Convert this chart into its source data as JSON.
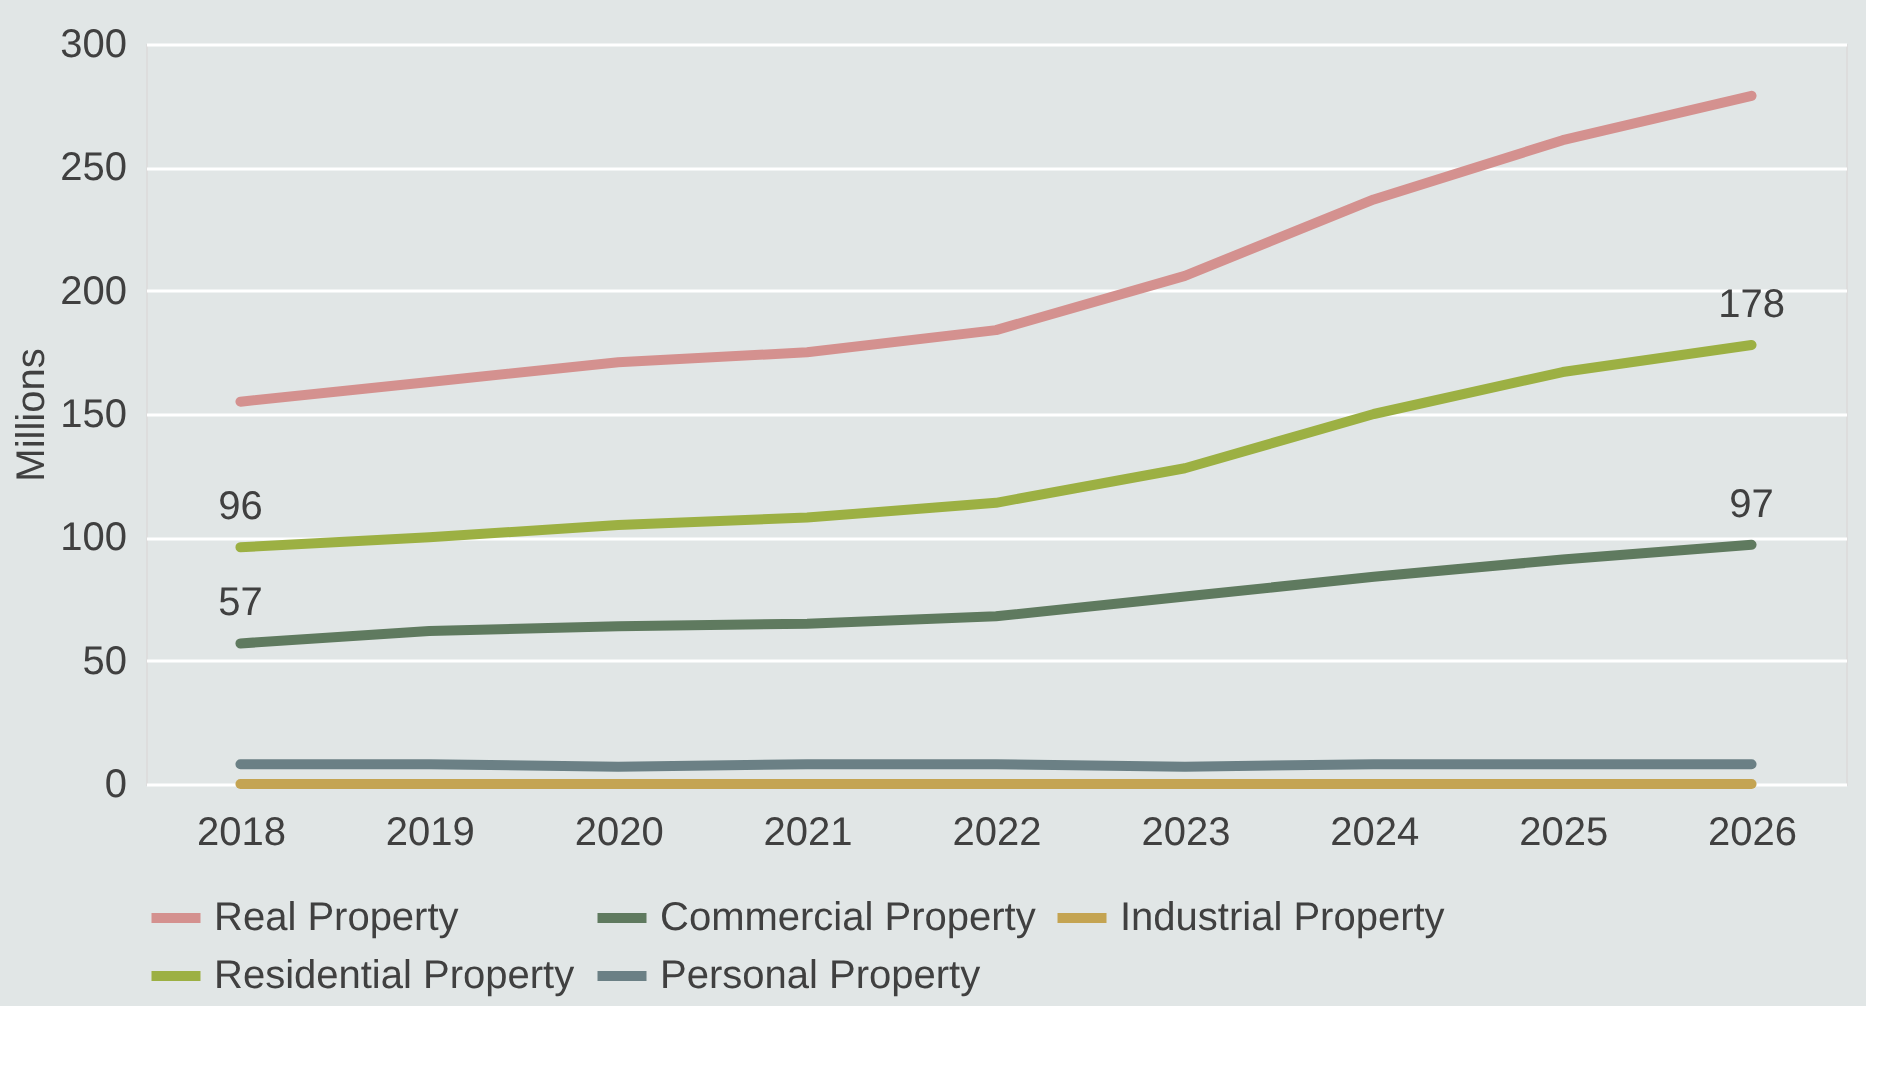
{
  "chart_data": {
    "type": "line",
    "ylabel": "Millions",
    "categories": [
      "2018",
      "2019",
      "2020",
      "2021",
      "2022",
      "2023",
      "2024",
      "2025",
      "2026"
    ],
    "ylim": [
      0,
      300
    ],
    "yticks": [
      0,
      50,
      100,
      150,
      200,
      250,
      300
    ],
    "grid": "y",
    "legend": "bottom",
    "marker": "none",
    "line_style": "solid",
    "series": [
      {
        "name": "Real Property",
        "color": "#d4918f",
        "values": [
          155,
          163,
          171,
          175,
          184,
          206,
          237,
          261,
          279
        ]
      },
      {
        "name": "Commercial Property",
        "color": "#5f7a5f",
        "values": [
          57,
          62,
          64,
          65,
          68,
          76,
          84,
          91,
          97
        ],
        "value_labels": [
          "57",
          null,
          null,
          null,
          null,
          null,
          null,
          null,
          "97"
        ]
      },
      {
        "name": "Industrial Property",
        "color": "#c4a452",
        "values": [
          0,
          0,
          0,
          0,
          0,
          0,
          0,
          0,
          0
        ]
      },
      {
        "name": "Residential Property",
        "color": "#9cb043",
        "values": [
          96,
          100,
          105,
          108,
          114,
          128,
          150,
          167,
          178
        ],
        "value_labels": [
          "96",
          null,
          null,
          null,
          null,
          null,
          null,
          null,
          "178"
        ]
      },
      {
        "name": "Personal Property",
        "color": "#6b8085",
        "values": [
          8,
          8,
          7,
          8,
          8,
          7,
          8,
          8,
          8
        ]
      }
    ]
  }
}
